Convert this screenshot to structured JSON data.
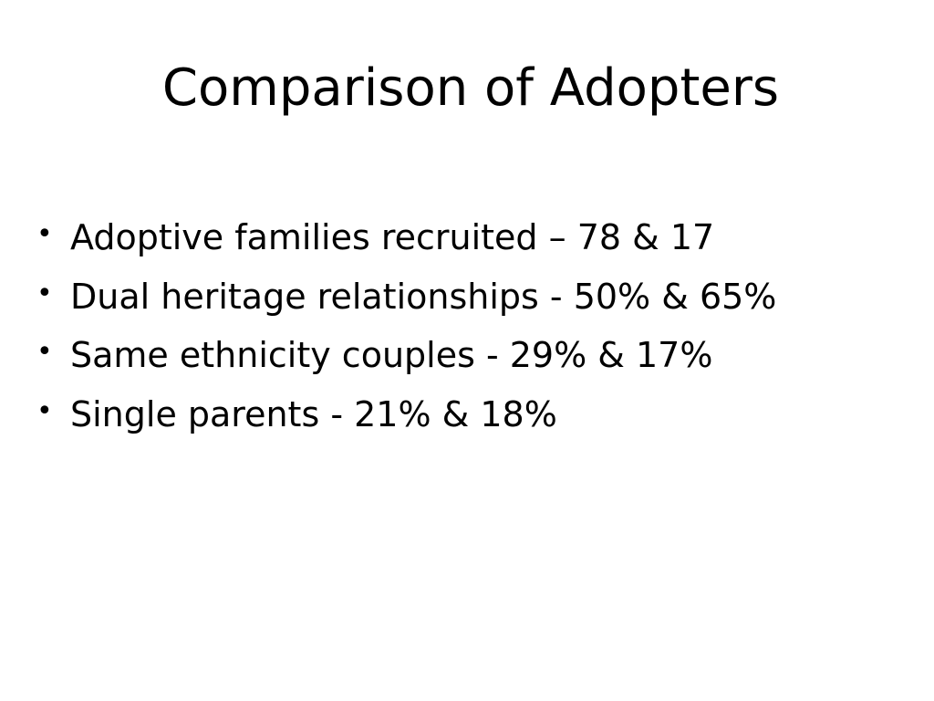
{
  "slide": {
    "title": "Comparison of Adopters",
    "bullets": [
      "Adoptive families recruited – 78 & 17",
      "Dual heritage relationships - 50% & 65%",
      "Same ethnicity couples - 29% & 17%",
      "Single parents - 21% & 18%"
    ]
  }
}
